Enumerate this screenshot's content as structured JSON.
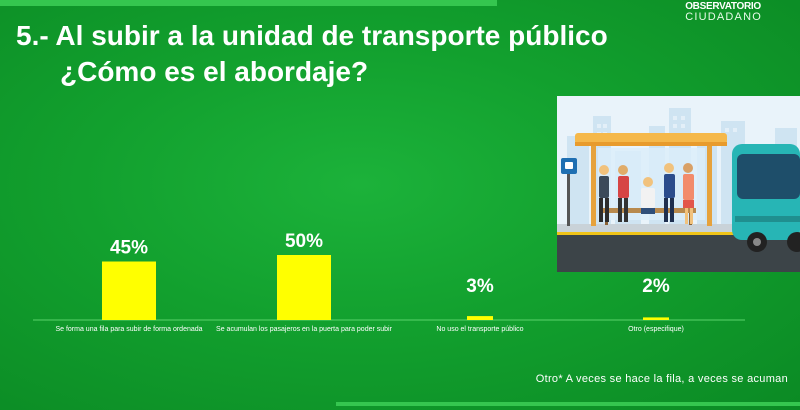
{
  "slide": {
    "logo_line1": "OBSERVATORIO",
    "logo_line2": "CIUDADANO",
    "title_line1": "5.- Al subir a la unidad de transporte público",
    "title_line2": "¿Cómo es el abordaje?",
    "footnote": "Otro* A veces se hace la fila, a veces se acuman",
    "illustration": "bus-stop-icon"
  },
  "chart_data": {
    "type": "bar",
    "categories": [
      "Se forma una fila para  subir de forma ordenada",
      "Se acumulan los pasajeros en la puerta para poder subir",
      "No uso el transporte público",
      "Otro (especifique)"
    ],
    "values": [
      45,
      50,
      3,
      2
    ],
    "value_labels": [
      "45%",
      "50%",
      "3%",
      "2%"
    ],
    "ylim": [
      0,
      100
    ],
    "bar_color": "#ffff00",
    "axis_color": "#5ad36b",
    "grid": false,
    "legend": "none"
  }
}
